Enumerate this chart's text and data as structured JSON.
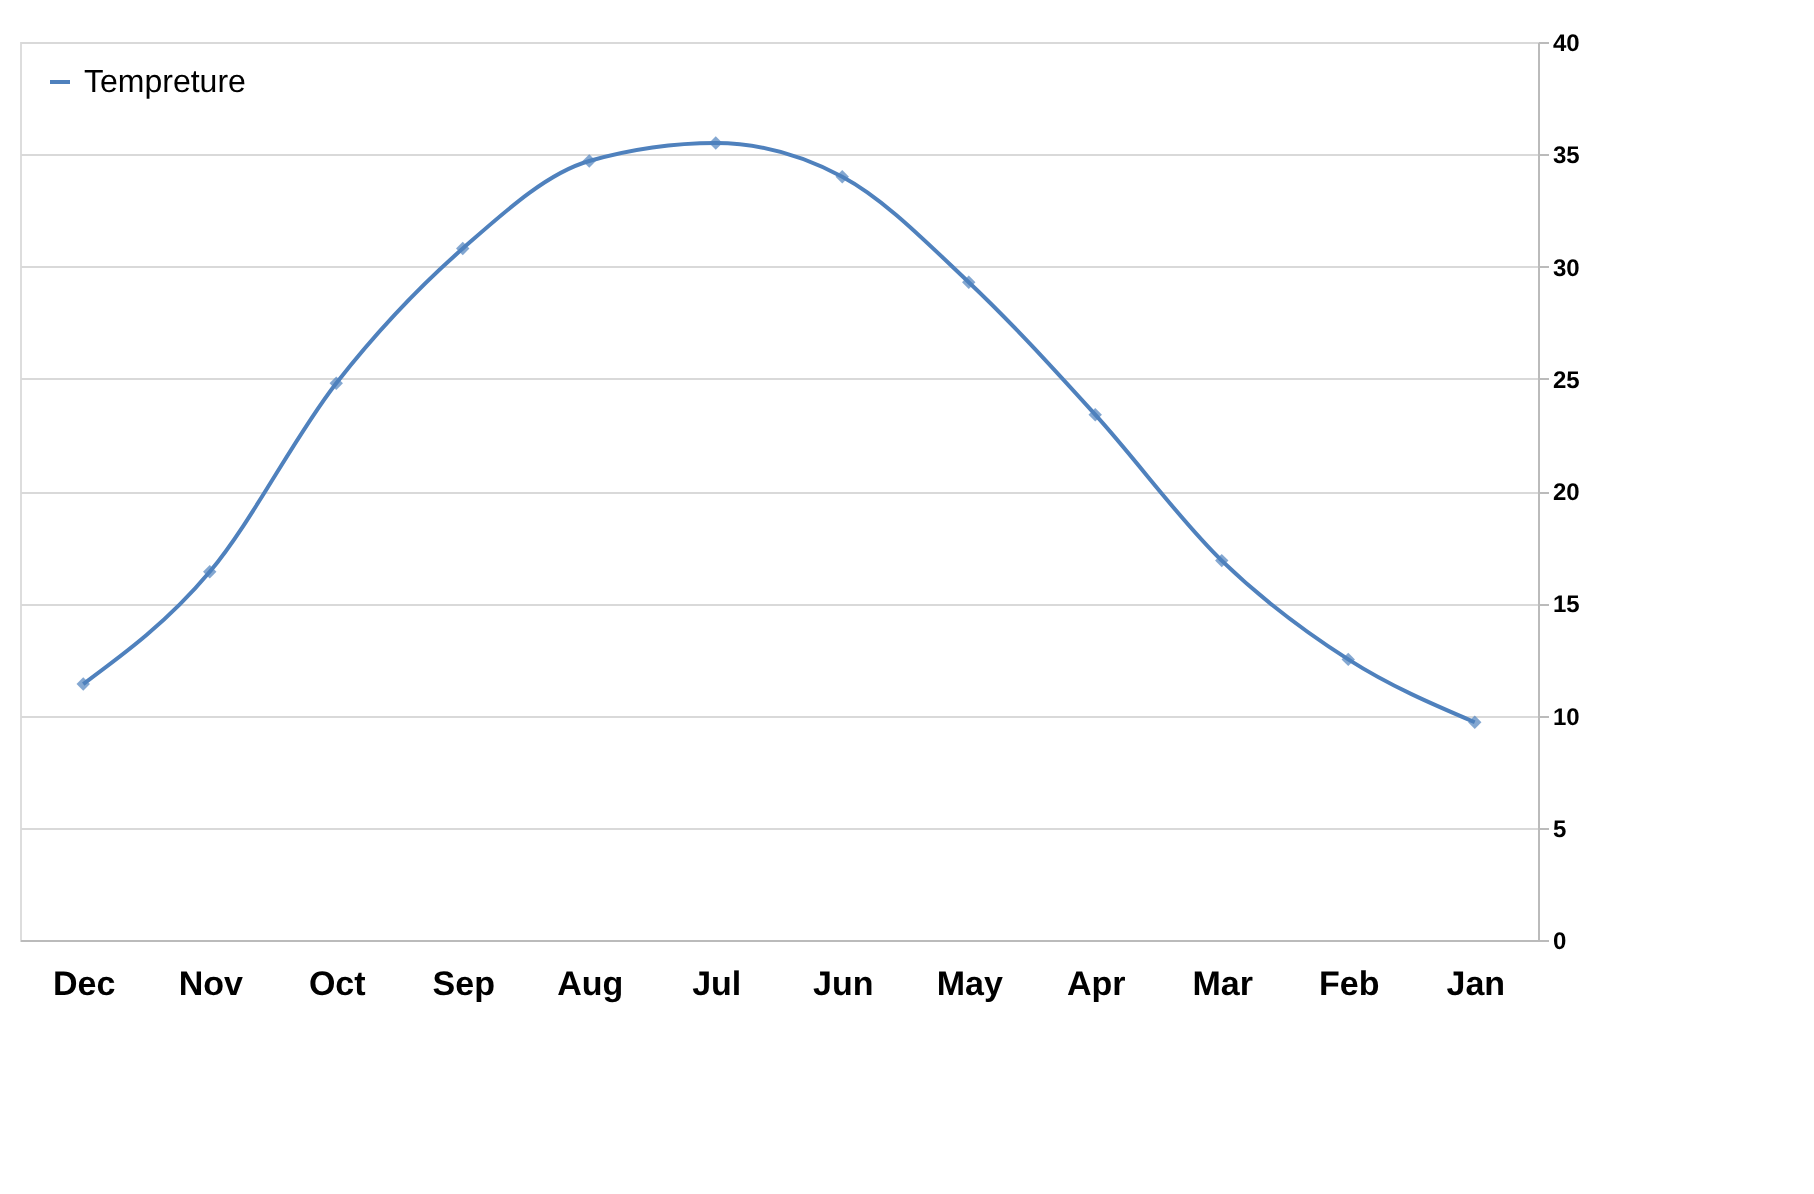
{
  "chart_data": {
    "type": "line",
    "categories": [
      "Dec",
      "Nov",
      "Oct",
      "Sep",
      "Aug",
      "Jul",
      "Jun",
      "May",
      "Apr",
      "Mar",
      "Feb",
      "Jan"
    ],
    "series": [
      {
        "name": "Tempreture",
        "color": "#4f81bd",
        "values": [
          11.4,
          16.4,
          24.8,
          30.8,
          34.7,
          35.5,
          34.0,
          29.3,
          23.4,
          16.9,
          12.5,
          9.7
        ]
      }
    ],
    "ylim": [
      0,
      40
    ],
    "yticks": [
      0,
      5,
      10,
      15,
      20,
      25,
      30,
      35,
      40
    ],
    "grid": "y",
    "legend": "top left",
    "marker": "diamond",
    "line_style": "solid"
  }
}
